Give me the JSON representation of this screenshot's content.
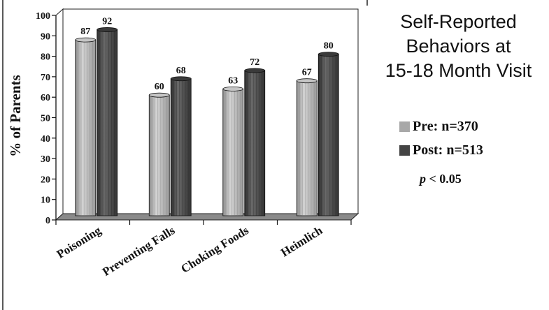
{
  "chart_data": {
    "type": "bar",
    "title": [
      "Self-Reported",
      "Behaviors at",
      "15-18 Month Visit"
    ],
    "ylabel": "% of Parents",
    "xlabel": "",
    "categories": [
      "Poisoning",
      "Preventing Falls",
      "Choking Foods",
      "Heimlich"
    ],
    "series": [
      {
        "name": "Pre: n=370",
        "values": [
          87,
          60,
          63,
          67
        ],
        "color": "#a8a8a8"
      },
      {
        "name": "Post: n=513",
        "values": [
          92,
          68,
          72,
          80
        ],
        "color": "#444444"
      }
    ],
    "ylim": [
      0,
      100
    ],
    "yticks": [
      "0",
      "10",
      "20",
      "30",
      "40",
      "50",
      "60",
      "70",
      "80",
      "90",
      "100"
    ],
    "legend_position": "right",
    "annotation": {
      "p_symbol": "p",
      "p_text": " < 0.05"
    },
    "floor_color": "#8a8a8a"
  }
}
